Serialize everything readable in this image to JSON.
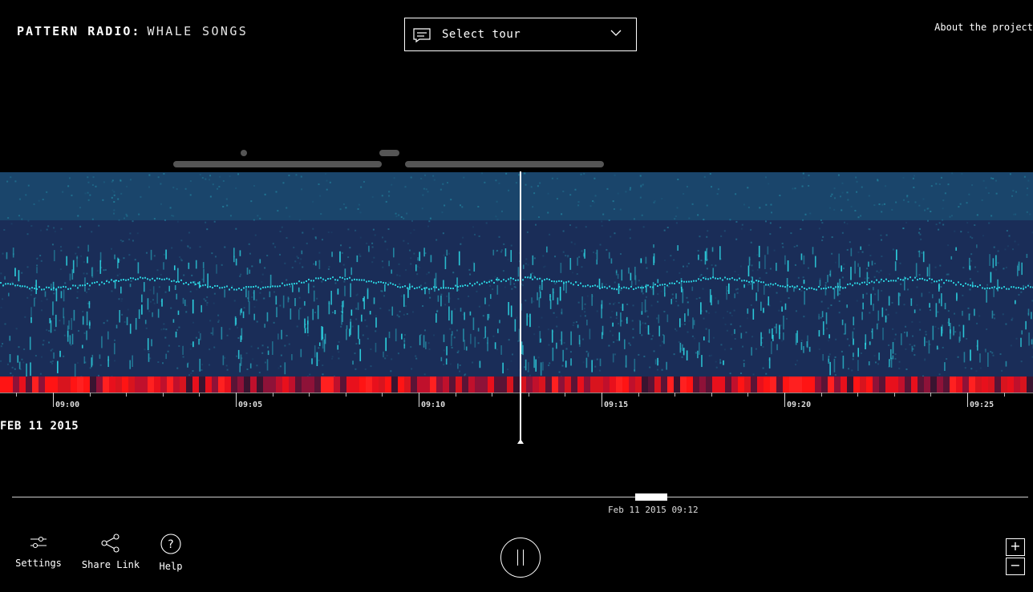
{
  "header": {
    "brand_bold": "PATTERN RADIO:",
    "brand_light": "WHALE SONGS",
    "tour_select_label": "Select tour",
    "about_link": "About the project"
  },
  "timeline": {
    "date": "FEB 11 2015",
    "ticks": [
      "09:00",
      "09:05",
      "09:10",
      "09:15",
      "09:20",
      "09:25"
    ]
  },
  "overview": {
    "position_label": "Feb 11 2015 09:12"
  },
  "toolbar": {
    "settings_label": "Settings",
    "share_label": "Share Link",
    "help_label": "Help",
    "help_glyph": "?",
    "zoom_in": "+",
    "zoom_out": "−"
  },
  "colors": {
    "background": "#000000",
    "spectrogram_bg": "#1c3460",
    "spectrogram_signal": "#2fe6f0",
    "heat_high": "#ff1010",
    "heat_low": "#3a1430"
  }
}
